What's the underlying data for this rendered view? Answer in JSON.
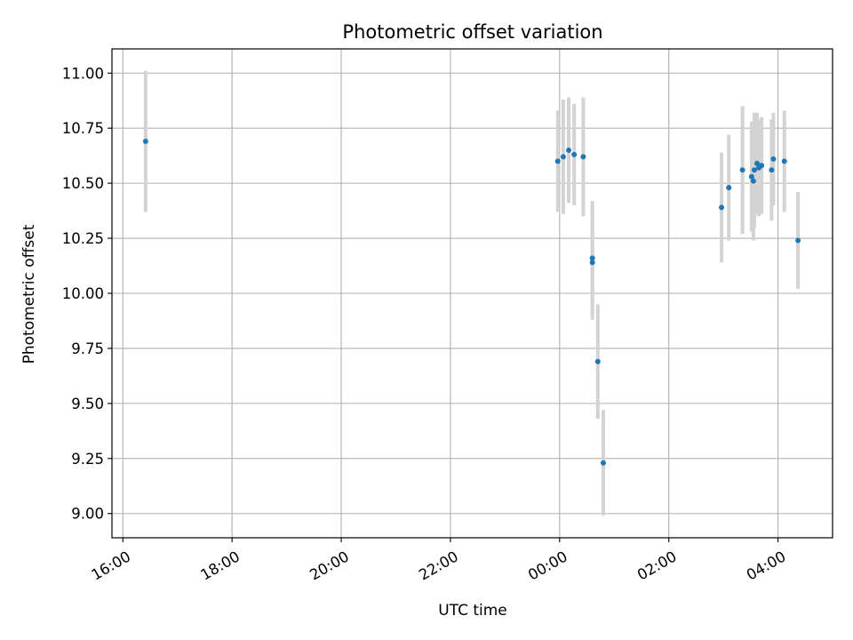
{
  "chart_data": {
    "type": "scatter",
    "title": "Photometric offset variation",
    "xlabel": "UTC time",
    "ylabel": "Photometric offset",
    "grid": true,
    "x_ticks": [
      "16:00",
      "18:00",
      "20:00",
      "22:00",
      "00:00",
      "02:00",
      "04:00"
    ],
    "y_ticks": [
      "9.00",
      "9.25",
      "9.50",
      "9.75",
      "10.00",
      "10.25",
      "10.50",
      "10.75",
      "11.00"
    ],
    "xlim": [
      "15:48",
      "05:00"
    ],
    "ylim": [
      8.89,
      11.11
    ],
    "colors": {
      "point": "#1f77b4",
      "errorbar": "#d3d3d3",
      "grid": "#b0b0b0"
    },
    "points": [
      {
        "x": "16:25",
        "y": 10.69,
        "err": 0.32
      },
      {
        "x": "23:58",
        "y": 10.6,
        "err": 0.23
      },
      {
        "x": "00:04",
        "y": 10.62,
        "err": 0.26
      },
      {
        "x": "00:10",
        "y": 10.65,
        "err": 0.24
      },
      {
        "x": "00:16",
        "y": 10.63,
        "err": 0.23
      },
      {
        "x": "00:26",
        "y": 10.62,
        "err": 0.27
      },
      {
        "x": "00:36",
        "y": 10.16,
        "err": 0.26
      },
      {
        "x": "00:36",
        "y": 10.14,
        "err": 0.26
      },
      {
        "x": "00:42",
        "y": 9.69,
        "err": 0.26
      },
      {
        "x": "00:48",
        "y": 9.23,
        "err": 0.24
      },
      {
        "x": "02:58",
        "y": 10.39,
        "err": 0.25
      },
      {
        "x": "03:06",
        "y": 10.48,
        "err": 0.24
      },
      {
        "x": "03:21",
        "y": 10.56,
        "err": 0.29
      },
      {
        "x": "03:31",
        "y": 10.53,
        "err": 0.25
      },
      {
        "x": "03:33",
        "y": 10.51,
        "err": 0.27
      },
      {
        "x": "03:34",
        "y": 10.56,
        "err": 0.26
      },
      {
        "x": "03:37",
        "y": 10.59,
        "err": 0.23
      },
      {
        "x": "03:39",
        "y": 10.57,
        "err": 0.22
      },
      {
        "x": "03:42",
        "y": 10.58,
        "err": 0.22
      },
      {
        "x": "03:53",
        "y": 10.56,
        "err": 0.23
      },
      {
        "x": "03:55",
        "y": 10.61,
        "err": 0.21
      },
      {
        "x": "04:07",
        "y": 10.6,
        "err": 0.23
      },
      {
        "x": "04:22",
        "y": 10.24,
        "err": 0.22
      }
    ]
  }
}
